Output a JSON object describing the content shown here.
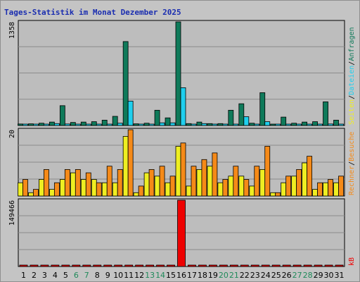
{
  "title": "Tages-Statistik im Monat Dezember 2025",
  "colors": {
    "hits": "#0f7a5a",
    "files": "#1fcfee",
    "pages": "#eeee22",
    "visits": "#f58a18",
    "sites": "#f58a18",
    "kbytes": "#ee0000",
    "weekend": "#1f8a5a",
    "weekday": "#000000",
    "grid": "#8c8c8c",
    "panel": "#bdbdbd"
  },
  "legend_top": {
    "hits": "Anfragen",
    "files": "Dateien",
    "pages": "Seiten",
    "sep": "/"
  },
  "legend_mid": {
    "visits": "Besuche",
    "sites": "Rechner",
    "sep": "/"
  },
  "legend_bottom": {
    "kbytes": "kB"
  },
  "chart_data": [
    {
      "type": "bar",
      "panel": "requests",
      "ymax_label": "1358",
      "ylim": [
        0,
        1358
      ],
      "x": [
        1,
        2,
        3,
        4,
        5,
        6,
        7,
        8,
        9,
        10,
        11,
        12,
        13,
        14,
        15,
        16,
        17,
        18,
        19,
        20,
        21,
        22,
        23,
        24,
        25,
        26,
        27,
        28,
        29,
        30,
        31
      ],
      "weekend_days": [
        6,
        7,
        13,
        14,
        20,
        21,
        27,
        28
      ],
      "series": [
        {
          "name": "Anfragen",
          "values": [
            20,
            22,
            30,
            45,
            260,
            40,
            45,
            50,
            70,
            120,
            1100,
            22,
            30,
            200,
            100,
            1358,
            25,
            45,
            25,
            25,
            200,
            285,
            30,
            430,
            12,
            110,
            30,
            45,
            50,
            310,
            70
          ]
        },
        {
          "name": "Dateien",
          "values": [
            8,
            6,
            10,
            25,
            20,
            12,
            10,
            10,
            12,
            30,
            320,
            8,
            10,
            35,
            35,
            495,
            6,
            25,
            6,
            5,
            15,
            115,
            6,
            50,
            5,
            10,
            12,
            15,
            12,
            20,
            15
          ]
        }
      ]
    },
    {
      "type": "bar",
      "panel": "visits",
      "ymax_label": "20",
      "ylim": [
        0,
        20
      ],
      "x": [
        1,
        2,
        3,
        4,
        5,
        6,
        7,
        8,
        9,
        10,
        11,
        12,
        13,
        14,
        15,
        16,
        17,
        18,
        19,
        20,
        21,
        22,
        23,
        24,
        25,
        26,
        27,
        28,
        29,
        30,
        31
      ],
      "series": [
        {
          "name": "Seiten",
          "values": [
            4,
            1,
            5,
            2,
            5,
            7,
            5,
            5,
            4,
            4,
            18,
            1,
            7,
            6,
            4,
            15,
            3,
            8,
            9,
            4,
            6,
            6,
            3,
            8,
            1,
            4,
            6,
            10,
            2,
            4,
            4
          ]
        },
        {
          "name": "Besuche",
          "values": [
            5,
            2,
            8,
            4,
            8,
            8,
            7,
            4,
            9,
            8,
            20,
            3,
            8,
            9,
            6,
            16,
            9,
            11,
            13,
            5,
            9,
            5,
            9,
            15,
            1,
            6,
            8,
            12,
            4,
            5,
            6
          ]
        }
      ]
    },
    {
      "type": "bar",
      "panel": "kbytes",
      "ymax_label": "149466",
      "ylim": [
        0,
        149466
      ],
      "x": [
        1,
        2,
        3,
        4,
        5,
        6,
        7,
        8,
        9,
        10,
        11,
        12,
        13,
        14,
        15,
        16,
        17,
        18,
        19,
        20,
        21,
        22,
        23,
        24,
        25,
        26,
        27,
        28,
        29,
        30,
        31
      ],
      "series": [
        {
          "name": "kB",
          "values": [
            1500,
            1500,
            1500,
            1500,
            1500,
            1500,
            1500,
            1500,
            1500,
            1500,
            1500,
            1500,
            1500,
            1500,
            1500,
            149466,
            1500,
            1500,
            1500,
            1500,
            1500,
            1500,
            1500,
            1500,
            1500,
            1500,
            1500,
            1500,
            1500,
            1500,
            1500
          ]
        }
      ]
    }
  ]
}
